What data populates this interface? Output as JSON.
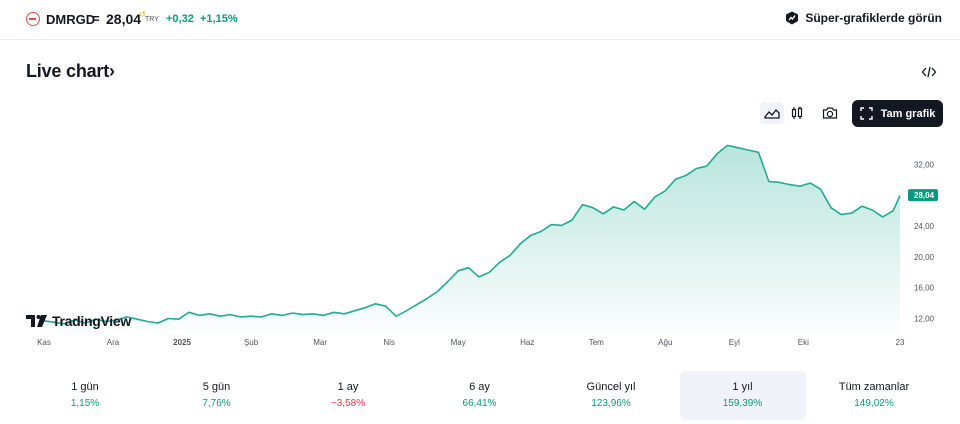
{
  "header": {
    "symbol": "DMRGD",
    "equals": "=",
    "price": "28,04",
    "currency": "TRY",
    "change_abs": "+0,32",
    "change_pct": "+1,15%",
    "super_link_label": "Süper-grafiklerde görün"
  },
  "section": {
    "title": "Live chart",
    "title_chevron": "›"
  },
  "toolbar": {
    "full_chart_label": "Tam grafik"
  },
  "branding": {
    "tradingview_label": "TradingView"
  },
  "colors": {
    "line": "#22ab94",
    "positive": "#089981",
    "negative": "#f23645",
    "price_label_bg": "#089981"
  },
  "chart_data": {
    "type": "area",
    "ylim": [
      10.5,
      36.5
    ],
    "y_ticks": [
      "12,00",
      "16,00",
      "20,00",
      "24,00",
      "28,00",
      "32,00"
    ],
    "y_tick_values": [
      12,
      16,
      20,
      24,
      28,
      32
    ],
    "last_price_label": "28,04",
    "last_price": 28.04,
    "x_ticks": [
      "Kas",
      "Ara",
      "2025",
      "Şub",
      "Mar",
      "Nis",
      "May",
      "Haz",
      "Tem",
      "Ağu",
      "Eyl",
      "Eki",
      "23"
    ],
    "x_tick_positions": [
      0.5,
      1.5,
      2.5,
      3.5,
      4.5,
      5.5,
      6.5,
      7.5,
      8.5,
      9.5,
      10.5,
      11.5,
      12.4
    ],
    "series": [
      {
        "x": [
          0,
          0.15,
          0.3,
          0.45,
          0.6,
          0.75,
          0.9,
          1.05,
          1.2,
          1.35,
          1.5,
          1.65,
          1.8,
          1.95,
          2.1,
          2.25,
          2.4,
          2.55,
          2.7,
          2.85,
          3.0,
          3.15,
          3.3,
          3.45,
          3.6,
          3.75,
          3.9,
          4.05,
          4.2,
          4.35,
          4.5,
          4.65,
          4.8,
          4.95,
          5.1,
          5.25,
          5.4,
          5.55,
          5.7,
          5.85,
          6.0,
          6.15,
          6.3,
          6.45,
          6.6,
          6.75,
          6.9,
          7.05,
          7.2,
          7.35,
          7.5,
          7.65,
          7.8,
          7.95,
          8.1,
          8.25,
          8.4,
          8.55,
          8.7,
          8.85,
          9.0,
          9.15,
          9.3,
          9.45,
          9.6,
          9.75,
          9.9,
          10.05,
          10.2,
          10.35,
          10.5,
          10.65,
          10.8,
          10.95,
          11.1,
          11.25,
          11.4,
          11.55,
          11.7,
          11.85,
          12.0,
          12.15,
          12.3,
          12.4
        ],
        "values": [
          11.7,
          11.5,
          11.3,
          11.8,
          11.4,
          11.9,
          11.6,
          11.8,
          12.2,
          11.9,
          11.6,
          11.4,
          12.0,
          11.9,
          12.8,
          12.4,
          12.6,
          12.3,
          12.5,
          12.2,
          12.3,
          12.2,
          12.6,
          12.4,
          12.7,
          12.5,
          12.6,
          12.4,
          12.8,
          12.6,
          13.0,
          13.4,
          13.9,
          13.6,
          12.3,
          13.0,
          13.8,
          14.6,
          15.5,
          16.8,
          18.2,
          18.6,
          17.4,
          18.0,
          19.3,
          20.2,
          21.7,
          22.8,
          23.3,
          24.2,
          24.1,
          24.8,
          26.8,
          26.4,
          25.6,
          26.5,
          26.1,
          27.2,
          26.2,
          27.8,
          28.6,
          30.1,
          30.6,
          31.5,
          31.8,
          33.4,
          34.5,
          34.2,
          33.9,
          33.6,
          29.8,
          29.7,
          29.4,
          29.2,
          29.6,
          28.8,
          26.4,
          25.5,
          25.7,
          26.6,
          26.1,
          25.2,
          26.0,
          28.0
        ]
      }
    ]
  },
  "periods": [
    {
      "label": "1 gün",
      "value": "1,15%",
      "sign": "pos",
      "active": false
    },
    {
      "label": "5 gün",
      "value": "7,76%",
      "sign": "pos",
      "active": false
    },
    {
      "label": "1 ay",
      "value": "−3,58%",
      "sign": "neg",
      "active": false
    },
    {
      "label": "6 ay",
      "value": "66,41%",
      "sign": "pos",
      "active": false
    },
    {
      "label": "Güncel yıl",
      "value": "123,96%",
      "sign": "pos",
      "active": false
    },
    {
      "label": "1 yıl",
      "value": "159,39%",
      "sign": "pos",
      "active": true
    },
    {
      "label": "Tüm zamanlar",
      "value": "149,02%",
      "sign": "pos",
      "active": false
    }
  ]
}
